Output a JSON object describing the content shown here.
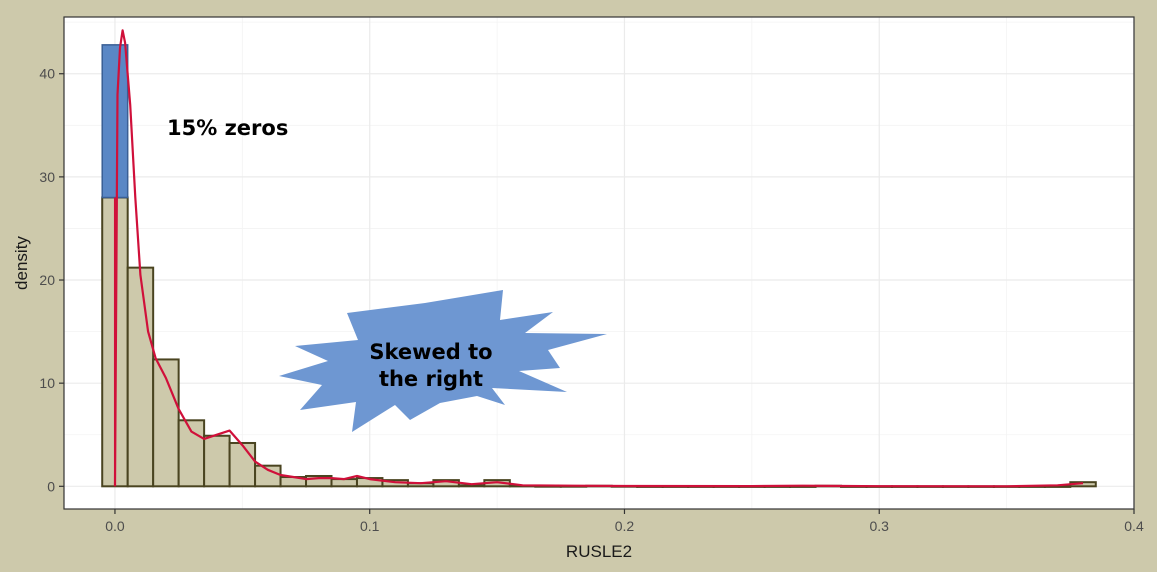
{
  "chart_data": {
    "type": "bar",
    "title": "",
    "xlabel": "RUSLE2",
    "ylabel": "density",
    "xlim": [
      -0.02,
      0.4
    ],
    "ylim": [
      -2.2,
      45.5
    ],
    "xticks": [
      0.0,
      0.1,
      0.2,
      0.3,
      0.4
    ],
    "xtick_labels": [
      "0.0",
      "0.1",
      "0.2",
      "0.3",
      "0.4"
    ],
    "yticks": [
      0,
      10,
      20,
      30,
      40
    ],
    "ytick_labels": [
      "0",
      "10",
      "20",
      "30",
      "40"
    ],
    "grid": true,
    "legend": "none",
    "bin_width": 0.01,
    "bin_start": -0.005,
    "histogram_values": [
      28.0,
      21.2,
      12.3,
      6.4,
      4.9,
      4.2,
      2.0,
      0.9,
      1.0,
      0.7,
      0.8,
      0.6,
      0.3,
      0.6,
      0.1,
      0.6,
      0.05,
      0.02,
      0.02,
      0.05,
      0.02,
      0,
      0,
      0,
      0,
      0,
      0,
      0,
      0.05,
      0,
      0,
      0,
      0,
      0,
      0,
      0,
      0,
      0,
      0.4
    ],
    "zeros_bar": {
      "x_start": -0.005,
      "x_end": 0.005,
      "y_from": 28.0,
      "y_to": 42.8
    },
    "density_curve": {
      "x": [
        0.0,
        0.001,
        0.002,
        0.003,
        0.004,
        0.006,
        0.008,
        0.01,
        0.013,
        0.016,
        0.02,
        0.025,
        0.03,
        0.035,
        0.04,
        0.045,
        0.05,
        0.055,
        0.06,
        0.065,
        0.07,
        0.075,
        0.08,
        0.085,
        0.09,
        0.095,
        0.1,
        0.11,
        0.12,
        0.13,
        0.14,
        0.15,
        0.16,
        0.18,
        0.2,
        0.25,
        0.27,
        0.28,
        0.3,
        0.35,
        0.37,
        0.38
      ],
      "y": [
        0,
        38.0,
        42.5,
        44.2,
        43.0,
        37.0,
        28.0,
        20.5,
        15.0,
        12.4,
        10.5,
        7.5,
        5.3,
        4.6,
        5.0,
        5.4,
        4.0,
        2.4,
        1.6,
        1.1,
        0.9,
        0.7,
        0.8,
        0.8,
        0.7,
        1.0,
        0.7,
        0.4,
        0.3,
        0.5,
        0.2,
        0.4,
        0.1,
        0.06,
        0.03,
        0.02,
        0.06,
        0.04,
        0.01,
        0.0,
        0.1,
        0.3
      ]
    },
    "zero_marker": {
      "x": 0.0,
      "y_from": 0,
      "y_to": 28.0
    },
    "annotations": [
      {
        "id": "zeros",
        "text": "15% zeros"
      },
      {
        "id": "skew",
        "lines": [
          "Skewed to",
          "the right"
        ]
      }
    ]
  },
  "colors": {
    "background": "#cdc9ab",
    "panel": "#ffffff",
    "grid": "#ebebeb",
    "bar_fill": "#cdc9ab",
    "bar_outline": "#4a4420",
    "zeros_fill": "#5a87c5",
    "density_line": "#d0103a",
    "starburst": "#6e97d2"
  }
}
